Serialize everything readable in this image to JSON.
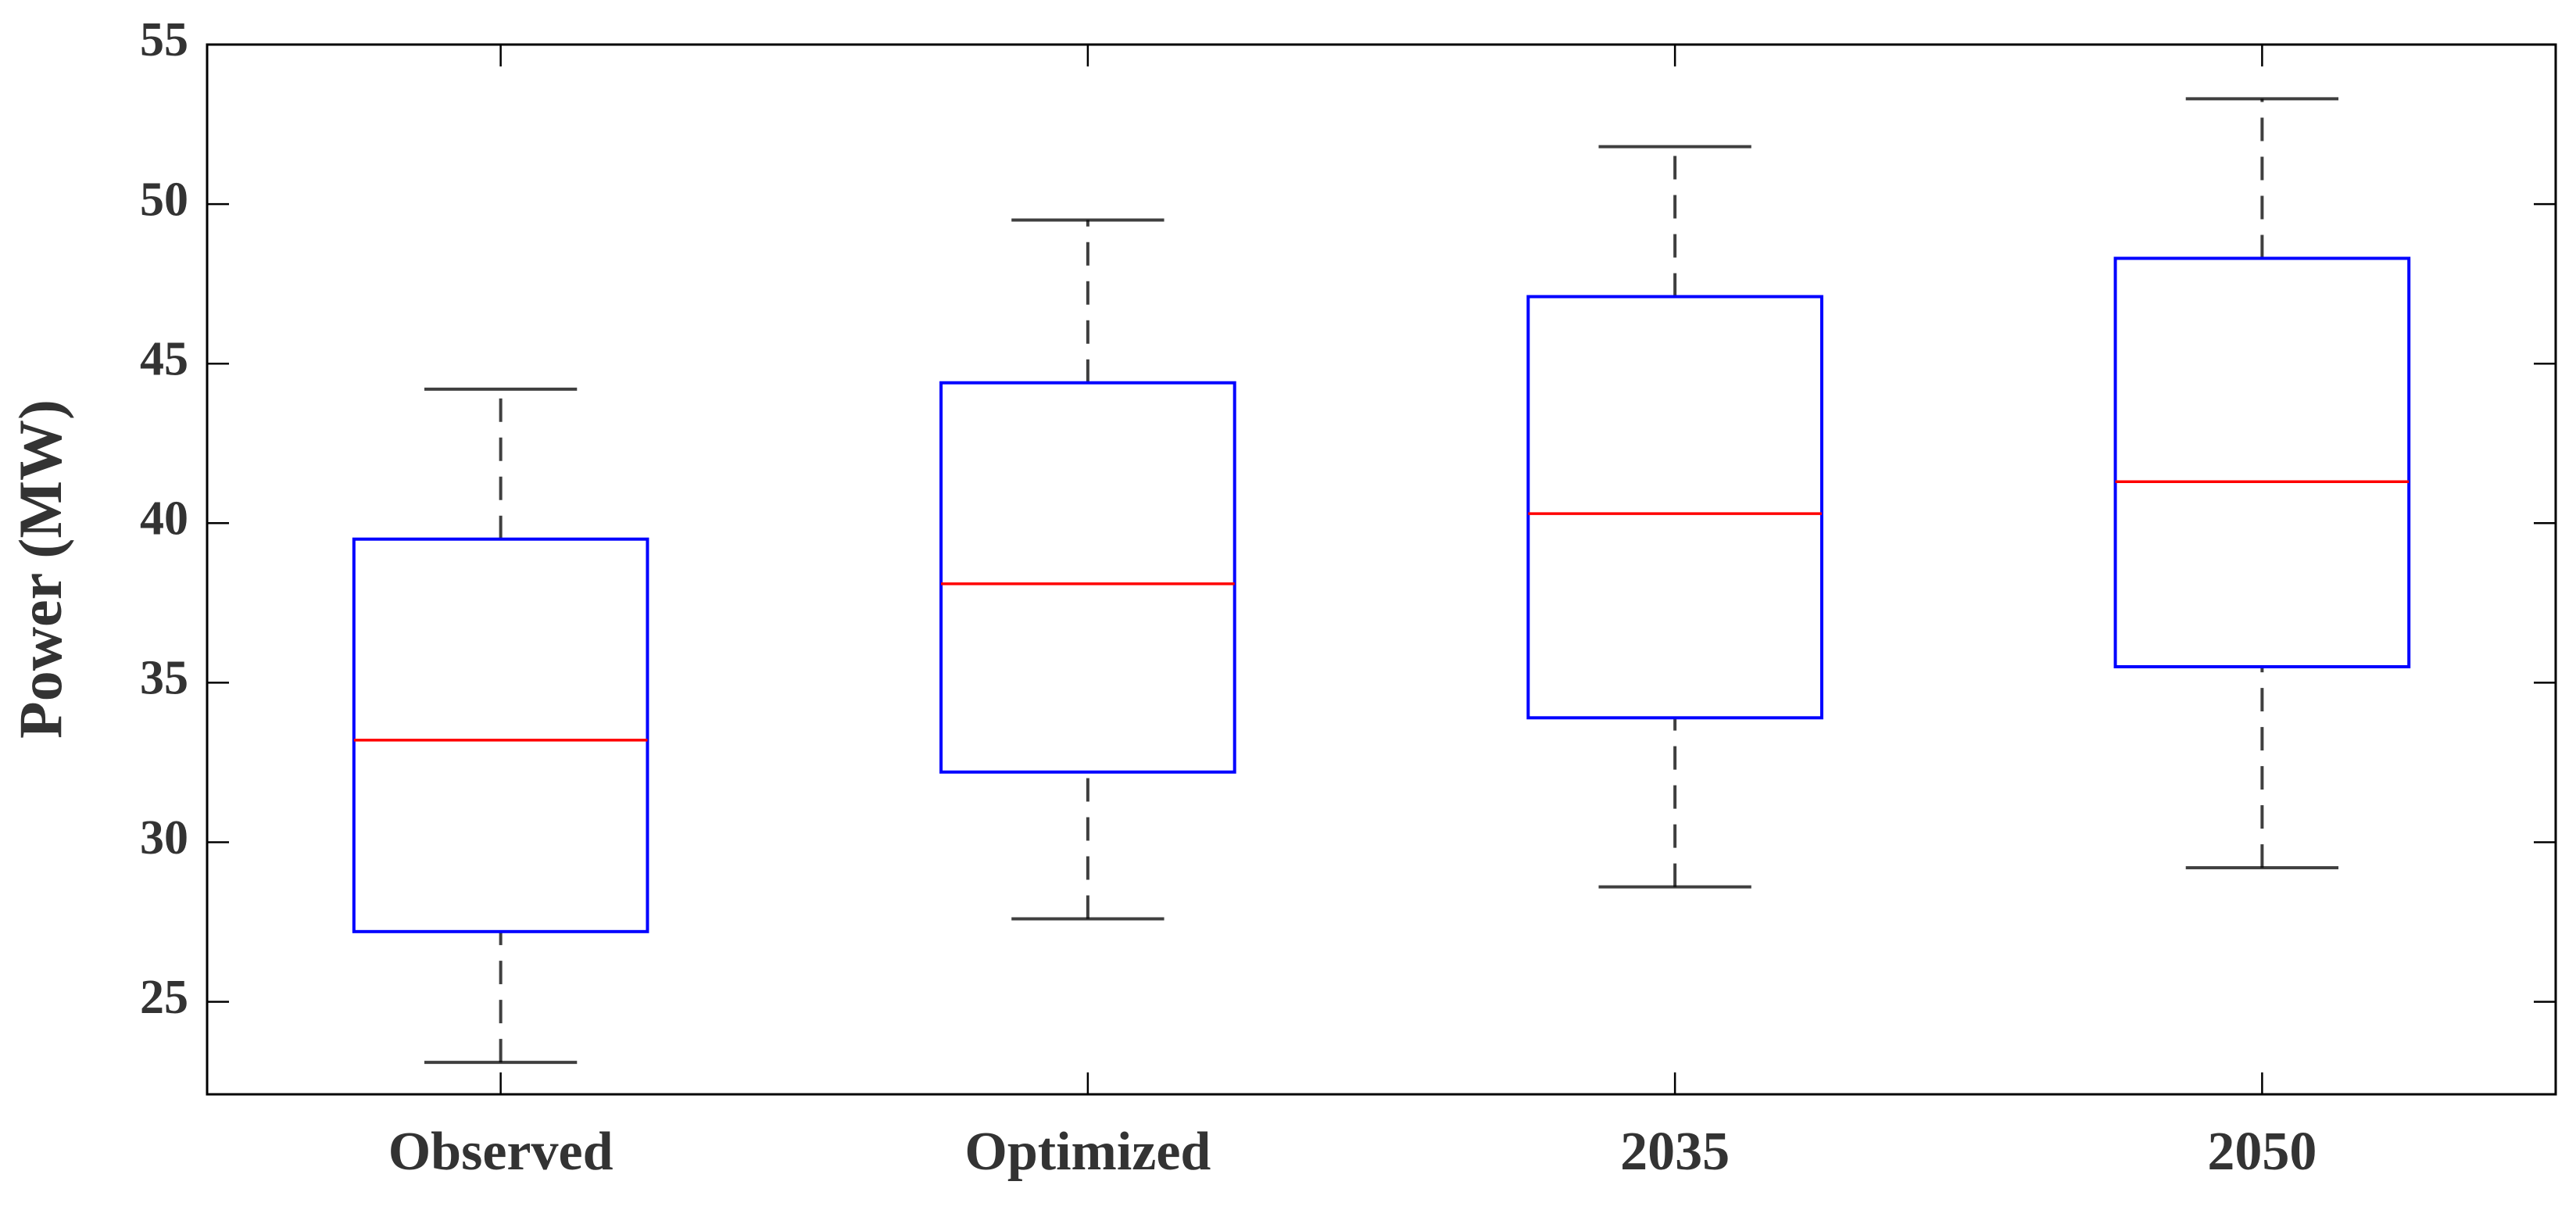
{
  "chart_data": {
    "type": "box",
    "ylabel": "Power (MW)",
    "categories": [
      "Observed",
      "Optimized",
      "2035",
      "2050"
    ],
    "boxes": [
      {
        "whislo": 23.1,
        "q1": 27.2,
        "med": 33.2,
        "q3": 39.5,
        "whishi": 44.2
      },
      {
        "whislo": 27.6,
        "q1": 32.2,
        "med": 38.1,
        "q3": 44.4,
        "whishi": 49.5
      },
      {
        "whislo": 28.6,
        "q1": 33.9,
        "med": 40.3,
        "q3": 47.1,
        "whishi": 51.8
      },
      {
        "whislo": 29.2,
        "q1": 35.5,
        "med": 41.3,
        "q3": 48.3,
        "whishi": 53.3
      }
    ],
    "box_color": "#0000ff",
    "median_color": "#ff0000",
    "whisker_color": "#000000",
    "ylim": [
      22.1,
      55
    ],
    "yticks": [
      25,
      30,
      35,
      40,
      45,
      50,
      55
    ]
  }
}
